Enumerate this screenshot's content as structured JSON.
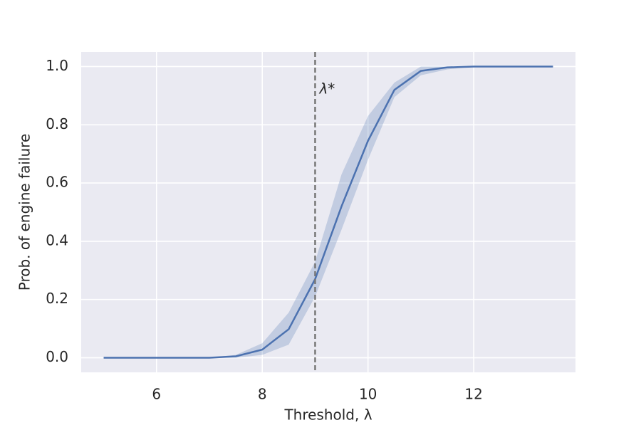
{
  "chart_data": {
    "type": "line",
    "xlabel": "Threshold, λ",
    "ylabel": "Prob. of engine failure",
    "x": [
      5,
      5.5,
      6,
      6.5,
      7,
      7.5,
      8,
      8.5,
      9,
      9.5,
      10,
      10.5,
      11,
      11.5,
      12,
      12.5,
      13,
      13.5
    ],
    "series": [
      {
        "color": "#4c72b0",
        "values": [
          0,
          0,
          0,
          0,
          0,
          0.005,
          0.028,
          0.098,
          0.27,
          0.52,
          0.745,
          0.92,
          0.985,
          0.997,
          1,
          1,
          1,
          1
        ],
        "lower": [
          0,
          0,
          0,
          0,
          0,
          0,
          0.01,
          0.045,
          0.21,
          0.44,
          0.68,
          0.895,
          0.97,
          0.99,
          1,
          1,
          1,
          1
        ],
        "upper": [
          0,
          0,
          0,
          0,
          0,
          0.01,
          0.05,
          0.155,
          0.33,
          0.63,
          0.83,
          0.945,
          1,
          1,
          1,
          1,
          1,
          1
        ]
      }
    ],
    "vline": {
      "x": 9,
      "color": "#777777",
      "label": "λ*",
      "label_y": 0.92
    },
    "xlim": [
      4.575,
      13.925
    ],
    "ylim": [
      -0.05,
      1.05
    ],
    "xticks": [
      6,
      8,
      10,
      12
    ],
    "yticks": [
      {
        "value": 0,
        "label": "0.0"
      },
      0.2,
      0.4,
      0.6,
      0.8,
      {
        "value": 1,
        "label": "1.0"
      }
    ],
    "grid": true,
    "background": "#eaeaf2"
  }
}
